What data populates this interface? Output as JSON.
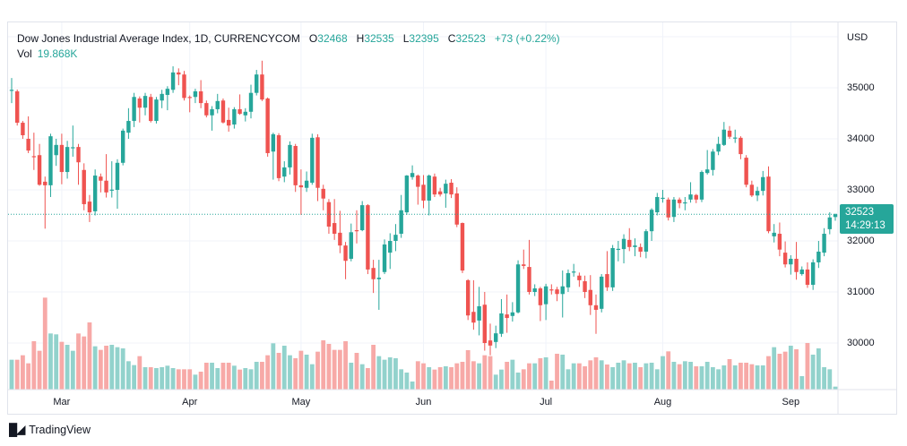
{
  "header": {
    "title": "Dow Jones Industrial Average Index, 1D, CURRENCYCOM",
    "o_label": "O",
    "o": "32468",
    "h_label": "H",
    "h": "32535",
    "l_label": "L",
    "l": "32395",
    "c_label": "C",
    "c": "32523",
    "change": "+73 (+0.22%)",
    "vol_label": "Vol",
    "vol": "19.868K"
  },
  "axis": {
    "currency": "USD"
  },
  "current": {
    "price": "32523",
    "countdown": "14:29:13"
  },
  "brand": {
    "logo": "TV",
    "name": "TradingView"
  },
  "colors": {
    "up": "#26a69a",
    "down": "#ef5350",
    "vol_up": "#92d2cc",
    "vol_down": "#f7a9a7"
  },
  "chart_data": {
    "type": "candlestick",
    "title": "Dow Jones Industrial Average Index, 1D, CURRENCYCOM",
    "ylabel": "USD",
    "ylim": [
      29500,
      36000
    ],
    "y_ticks": [
      "30000",
      "31000",
      "32000",
      "33000",
      "34000",
      "35000"
    ],
    "x_ticks": [
      "Mar",
      "Apr",
      "May",
      "Jun",
      "Jul",
      "Aug",
      "Sep"
    ],
    "x_tick_index": [
      9,
      32,
      52,
      74,
      96,
      117,
      140
    ],
    "grid": true,
    "candles_ohlc": [
      [
        34950,
        35190,
        34700,
        34960
      ],
      [
        34930,
        34965,
        34260,
        34315
      ],
      [
        34315,
        34350,
        34000,
        34070
      ],
      [
        34000,
        34440,
        33720,
        33770
      ],
      [
        33660,
        34120,
        33390,
        33650
      ],
      [
        33680,
        33900,
        33080,
        33100
      ],
      [
        33160,
        33260,
        32240,
        33090
      ],
      [
        33090,
        34100,
        32860,
        34050
      ],
      [
        33680,
        34000,
        33470,
        33880
      ],
      [
        33880,
        34100,
        33110,
        33350
      ],
      [
        33350,
        33960,
        33220,
        33840
      ],
      [
        33830,
        34260,
        33650,
        33835
      ],
      [
        33840,
        33900,
        33100,
        33540
      ],
      [
        33390,
        33520,
        32600,
        32720
      ],
      [
        32770,
        32900,
        32370,
        32560
      ],
      [
        32580,
        33400,
        32500,
        33280
      ],
      [
        33260,
        33320,
        32950,
        33180
      ],
      [
        33180,
        33700,
        32850,
        32950
      ],
      [
        33000,
        33560,
        32850,
        33005
      ],
      [
        33000,
        33600,
        32630,
        33530
      ],
      [
        33530,
        34200,
        33480,
        34160
      ],
      [
        34120,
        34600,
        34000,
        34350
      ],
      [
        34350,
        34900,
        34230,
        34820
      ],
      [
        34790,
        34830,
        34320,
        34610
      ],
      [
        34610,
        34900,
        34460,
        34840
      ],
      [
        34820,
        34880,
        34320,
        34350
      ],
      [
        34350,
        34820,
        34300,
        34770
      ],
      [
        34750,
        34960,
        34600,
        34880
      ],
      [
        34860,
        35030,
        34560,
        34980
      ],
      [
        34960,
        35420,
        34900,
        35300
      ],
      [
        35300,
        35380,
        35050,
        35260
      ],
      [
        35260,
        35330,
        34750,
        34800
      ],
      [
        34820,
        34850,
        34520,
        34815
      ],
      [
        34820,
        34980,
        34700,
        34930
      ],
      [
        34930,
        35150,
        34600,
        34700
      ],
      [
        34700,
        34750,
        34420,
        34460
      ],
      [
        34460,
        34640,
        34160,
        34580
      ],
      [
        34580,
        34880,
        34500,
        34740
      ],
      [
        34750,
        34790,
        34300,
        34320
      ],
      [
        34370,
        34610,
        34140,
        34260
      ],
      [
        34280,
        34620,
        34200,
        34580
      ],
      [
        34580,
        34870,
        34470,
        34490
      ],
      [
        34460,
        34600,
        34340,
        34530
      ],
      [
        34530,
        35060,
        34400,
        34900
      ],
      [
        34900,
        35350,
        34850,
        35260
      ],
      [
        35260,
        35530,
        34740,
        34770
      ],
      [
        34790,
        34810,
        33650,
        33720
      ],
      [
        33750,
        34120,
        33200,
        34090
      ],
      [
        34070,
        34110,
        33170,
        33230
      ],
      [
        33260,
        33560,
        33150,
        33440
      ],
      [
        33440,
        33950,
        33300,
        33880
      ],
      [
        33860,
        33900,
        32960,
        33090
      ],
      [
        33090,
        33400,
        32510,
        33050
      ],
      [
        33040,
        33360,
        32960,
        33180
      ],
      [
        33140,
        34100,
        33100,
        34020
      ],
      [
        34030,
        34090,
        32780,
        33040
      ],
      [
        33020,
        33100,
        32600,
        32830
      ],
      [
        32760,
        32820,
        32140,
        32280
      ],
      [
        32350,
        32820,
        32020,
        32140
      ],
      [
        32160,
        32590,
        31760,
        31910
      ],
      [
        31910,
        31980,
        31250,
        31610
      ],
      [
        31650,
        32340,
        31600,
        32170
      ],
      [
        32210,
        32600,
        31950,
        32200
      ],
      [
        32210,
        32780,
        32190,
        32700
      ],
      [
        32700,
        32720,
        31350,
        31440
      ],
      [
        31470,
        31630,
        30980,
        31250
      ],
      [
        31250,
        31630,
        30650,
        31280
      ],
      [
        31390,
        32030,
        31350,
        31930
      ],
      [
        31770,
        32150,
        31450,
        32000
      ],
      [
        32000,
        32330,
        31800,
        32120
      ],
      [
        32140,
        32900,
        32060,
        32600
      ],
      [
        32560,
        33290,
        32510,
        33280
      ],
      [
        33250,
        33480,
        33200,
        33330
      ],
      [
        33280,
        33300,
        32710,
        33060
      ],
      [
        33100,
        33290,
        32640,
        32790
      ],
      [
        32790,
        33300,
        32500,
        33280
      ],
      [
        33260,
        33320,
        32860,
        32910
      ],
      [
        32970,
        33040,
        32870,
        32910
      ],
      [
        32930,
        33200,
        32650,
        33120
      ],
      [
        33140,
        33210,
        32840,
        32910
      ],
      [
        32930,
        33050,
        32270,
        32320
      ],
      [
        32350,
        32360,
        31370,
        31420
      ],
      [
        31230,
        31250,
        30450,
        30540
      ],
      [
        30610,
        31230,
        30260,
        30400
      ],
      [
        30440,
        31100,
        30150,
        30720
      ],
      [
        30750,
        31000,
        29850,
        30000
      ],
      [
        30050,
        30380,
        29760,
        29950
      ],
      [
        30020,
        30340,
        29900,
        30190
      ],
      [
        30180,
        30860,
        30120,
        30580
      ],
      [
        30560,
        30950,
        30200,
        30490
      ],
      [
        30530,
        30800,
        30420,
        30600
      ],
      [
        30600,
        31620,
        30580,
        31540
      ],
      [
        31540,
        31830,
        31450,
        31510
      ],
      [
        31490,
        32020,
        30950,
        31000
      ],
      [
        31000,
        31150,
        30920,
        31070
      ],
      [
        31070,
        31100,
        30430,
        30740
      ],
      [
        30760,
        31160,
        30450,
        31110
      ],
      [
        31050,
        31150,
        30950,
        31045
      ],
      [
        31050,
        31100,
        30820,
        30960
      ],
      [
        30960,
        31420,
        30500,
        31110
      ],
      [
        31090,
        31440,
        31000,
        31370
      ],
      [
        31390,
        31550,
        31300,
        31400
      ],
      [
        31320,
        31380,
        31100,
        31230
      ],
      [
        31210,
        31320,
        30880,
        31000
      ],
      [
        31040,
        31330,
        30550,
        30740
      ],
      [
        30740,
        30950,
        30180,
        30650
      ],
      [
        30670,
        31350,
        30600,
        31300
      ],
      [
        31350,
        31800,
        31020,
        31090
      ],
      [
        31090,
        31920,
        31020,
        31860
      ],
      [
        31840,
        32000,
        31600,
        31845
      ],
      [
        31840,
        32130,
        31560,
        32040
      ],
      [
        32020,
        32250,
        31800,
        31880
      ],
      [
        31880,
        32050,
        31700,
        31910
      ],
      [
        31880,
        31950,
        31680,
        31790
      ],
      [
        31790,
        32230,
        31660,
        32190
      ],
      [
        32190,
        32640,
        32000,
        32610
      ],
      [
        32560,
        32940,
        32500,
        32860
      ],
      [
        32840,
        33000,
        32750,
        32845
      ],
      [
        32810,
        32850,
        32400,
        32460
      ],
      [
        32470,
        32860,
        32370,
        32810
      ],
      [
        32810,
        32850,
        32640,
        32740
      ],
      [
        32750,
        32860,
        32600,
        32755
      ],
      [
        32810,
        33150,
        32750,
        32910
      ],
      [
        32900,
        32920,
        32740,
        32810
      ],
      [
        32810,
        33380,
        32760,
        33350
      ],
      [
        33330,
        33780,
        33300,
        33400
      ],
      [
        33390,
        33800,
        33280,
        33750
      ],
      [
        33750,
        34040,
        33680,
        33900
      ],
      [
        33880,
        34330,
        33860,
        34180
      ],
      [
        34160,
        34250,
        34000,
        34040
      ],
      [
        34020,
        34180,
        33920,
        34025
      ],
      [
        34020,
        34050,
        33600,
        33700
      ],
      [
        33630,
        33680,
        33050,
        33100
      ],
      [
        33100,
        33180,
        32860,
        32890
      ],
      [
        32890,
        33060,
        32780,
        32980
      ],
      [
        32980,
        33370,
        32890,
        33250
      ],
      [
        33260,
        33460,
        32150,
        32190
      ],
      [
        32090,
        32330,
        31970,
        32160
      ],
      [
        32140,
        32360,
        31700,
        31830
      ],
      [
        31770,
        31990,
        31480,
        31540
      ],
      [
        31540,
        31720,
        31340,
        31650
      ],
      [
        31650,
        31980,
        31240,
        31390
      ],
      [
        31350,
        31500,
        31320,
        31440
      ],
      [
        31440,
        31580,
        31080,
        31140
      ],
      [
        31140,
        31640,
        31040,
        31580
      ],
      [
        31580,
        32000,
        31470,
        31790
      ],
      [
        31770,
        32250,
        31700,
        32140
      ],
      [
        32230,
        32560,
        32130,
        32460
      ],
      [
        32468,
        32535,
        32395,
        32523
      ]
    ],
    "volume_k": [
      200,
      200,
      230,
      176,
      324,
      260,
      616,
      376,
      370,
      320,
      300,
      260,
      376,
      356,
      450,
      290,
      266,
      294,
      300,
      284,
      276,
      190,
      164,
      224,
      150,
      150,
      144,
      150,
      160,
      144,
      136,
      136,
      136,
      100,
      120,
      180,
      180,
      144,
      180,
      180,
      160,
      134,
      144,
      136,
      186,
      186,
      230,
      310,
      246,
      294,
      230,
      210,
      260,
      234,
      170,
      254,
      330,
      306,
      266,
      266,
      324,
      180,
      246,
      170,
      144,
      300,
      224,
      200,
      216,
      210,
      136,
      114,
      54,
      190,
      176,
      150,
      134,
      150,
      156,
      150,
      176,
      186,
      264,
      190,
      176,
      230,
      224,
      100,
      134,
      186,
      200,
      114,
      136,
      176,
      176,
      210,
      216,
      60,
      240,
      234,
      136,
      176,
      176,
      156,
      196,
      216,
      196,
      168,
      150,
      180,
      196,
      176,
      180,
      150,
      176,
      180,
      136,
      224,
      256,
      186,
      170,
      190,
      186,
      156,
      156,
      186,
      150,
      136,
      162,
      204,
      162,
      180,
      180,
      170,
      162,
      162,
      224,
      284,
      240,
      254,
      294,
      270,
      90,
      312,
      234,
      276,
      150,
      136,
      19.868
    ]
  }
}
